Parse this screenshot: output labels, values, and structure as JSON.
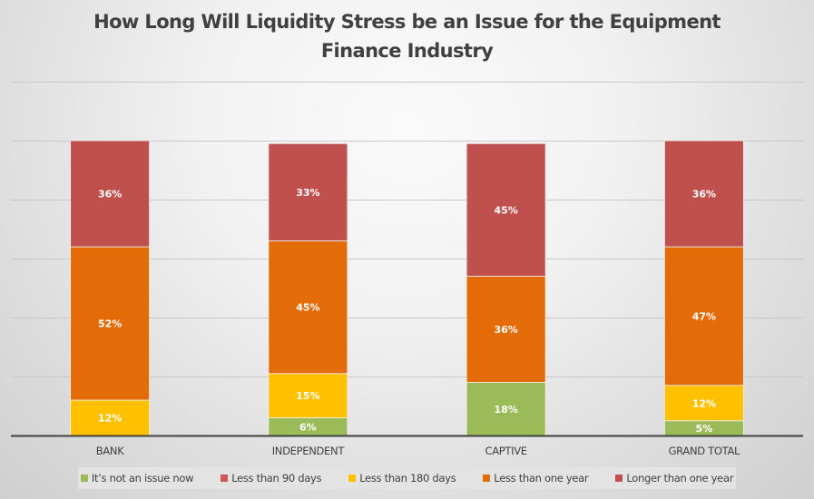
{
  "chart_data": {
    "type": "bar",
    "stacked": true,
    "title": "How Long Will Liquidity Stress be an Issue for the Equipment Finance Industry",
    "title_lines": [
      "How Long Will Liquidity Stress be an Issue for the Equipment",
      "Finance Industry"
    ],
    "xlabel": "",
    "ylabel": "",
    "ylim": [
      0,
      120
    ],
    "y_grid_step": 20,
    "grid": true,
    "legend_position": "bottom",
    "categories": [
      "BANK",
      "INDEPENDENT",
      "CAPTIVE",
      "GRAND TOTAL"
    ],
    "series": [
      {
        "name": "It’s not an issue now",
        "color": "#9bbb59",
        "values": [
          0,
          6,
          18,
          5
        ]
      },
      {
        "name": "Less than 90 days",
        "color": "#d05757",
        "values": [
          0,
          0,
          0,
          0
        ]
      },
      {
        "name": "Less than 180 days",
        "color": "#ffc000",
        "values": [
          12,
          15,
          0,
          12
        ]
      },
      {
        "name": "Less than one year",
        "color": "#e36c09",
        "values": [
          52,
          45,
          36,
          47
        ]
      },
      {
        "name": "Longer than one year",
        "color": "#c0504d",
        "values": [
          36,
          33,
          45,
          36
        ]
      }
    ],
    "value_suffix": "%"
  }
}
